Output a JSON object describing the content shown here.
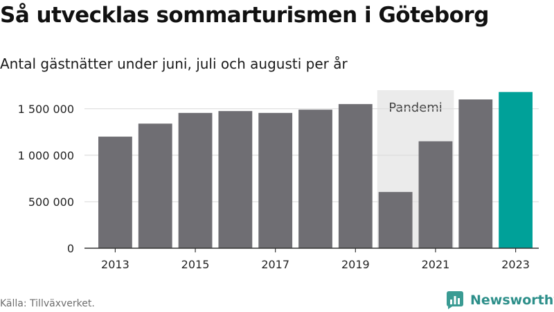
{
  "header": {
    "title": "Så utvecklas sommarturismen i Göteborg",
    "subtitle": "Antal gästnätter under juni, juli och augusti per år"
  },
  "footer": {
    "source": "Källa: Tillväxverket.",
    "brand": "Newsworthy"
  },
  "colors": {
    "bar": "#6f6e73",
    "highlight": "#00a199",
    "pandemic_band": "#ebebeb",
    "grid": "#dcdcdc",
    "axis_text": "#222222",
    "brand": "#2d8f8a"
  },
  "icons": [
    "newsworthy-logo-icon"
  ],
  "chart_data": {
    "type": "bar",
    "categories": [
      "2013",
      "2014",
      "2015",
      "2016",
      "2017",
      "2018",
      "2019",
      "2020",
      "2021",
      "2022",
      "2023"
    ],
    "values": [
      1200000,
      1340000,
      1455000,
      1475000,
      1455000,
      1490000,
      1550000,
      605000,
      1150000,
      1600000,
      1680000
    ],
    "highlight_category": "2023",
    "x_tick_labels": [
      "2013",
      "2015",
      "2017",
      "2019",
      "2021",
      "2023"
    ],
    "y_ticks": [
      0,
      500000,
      1000000,
      1500000
    ],
    "y_tick_labels": [
      "0",
      "500 000",
      "1 000 000",
      "1 500 000"
    ],
    "ylim": [
      0,
      1700000
    ],
    "grid": "horizontal",
    "annotation": {
      "label": "Pandemi",
      "from_category": "2020",
      "to_category": "2021"
    }
  }
}
